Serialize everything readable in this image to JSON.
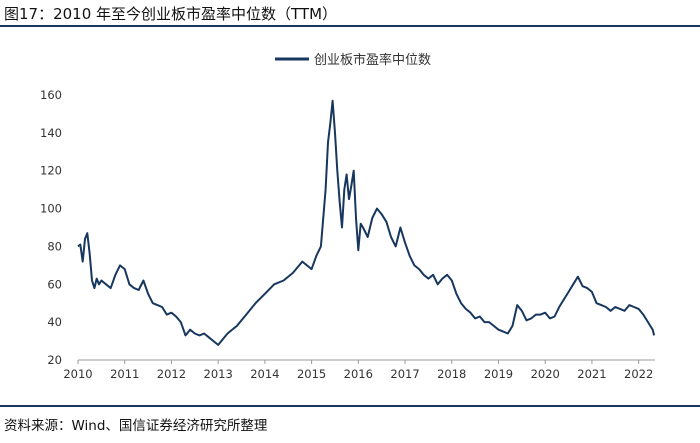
{
  "header": {
    "title": "图17：2010 年至今创业板市盈率中位数（TTM）"
  },
  "footer": {
    "source": "资料来源：Wind、国信证券经济研究所整理"
  },
  "colors": {
    "series": "#17375e",
    "rule": "#17375e"
  },
  "chart_data": {
    "type": "line",
    "title": "",
    "xlabel": "",
    "ylabel": "",
    "xlim": [
      2010.0,
      2022.35
    ],
    "ylim": [
      20,
      160
    ],
    "yticks": [
      20,
      40,
      60,
      80,
      100,
      120,
      140,
      160
    ],
    "xticks": [
      2010,
      2011,
      2012,
      2013,
      2014,
      2015,
      2016,
      2017,
      2018,
      2019,
      2020,
      2021,
      2022
    ],
    "legend": {
      "position": "top-center",
      "entries": [
        "创业板市盈率中位数"
      ]
    },
    "series": [
      {
        "name": "创业板市盈率中位数",
        "x": [
          2010.0,
          2010.05,
          2010.1,
          2010.15,
          2010.2,
          2010.25,
          2010.3,
          2010.35,
          2010.4,
          2010.45,
          2010.5,
          2010.6,
          2010.7,
          2010.8,
          2010.9,
          2011.0,
          2011.1,
          2011.2,
          2011.3,
          2011.4,
          2011.5,
          2011.6,
          2011.7,
          2011.8,
          2011.9,
          2012.0,
          2012.1,
          2012.2,
          2012.3,
          2012.4,
          2012.5,
          2012.6,
          2012.7,
          2012.8,
          2012.9,
          2013.0,
          2013.2,
          2013.4,
          2013.6,
          2013.8,
          2014.0,
          2014.2,
          2014.4,
          2014.6,
          2014.8,
          2015.0,
          2015.1,
          2015.2,
          2015.3,
          2015.35,
          2015.4,
          2015.45,
          2015.5,
          2015.55,
          2015.6,
          2015.65,
          2015.7,
          2015.75,
          2015.8,
          2015.85,
          2015.9,
          2015.95,
          2016.0,
          2016.05,
          2016.1,
          2016.2,
          2016.3,
          2016.4,
          2016.5,
          2016.6,
          2016.7,
          2016.8,
          2016.9,
          2017.0,
          2017.1,
          2017.2,
          2017.3,
          2017.4,
          2017.5,
          2017.6,
          2017.7,
          2017.8,
          2017.9,
          2018.0,
          2018.1,
          2018.2,
          2018.3,
          2018.4,
          2018.5,
          2018.6,
          2018.7,
          2018.8,
          2018.9,
          2019.0,
          2019.1,
          2019.2,
          2019.3,
          2019.4,
          2019.5,
          2019.6,
          2019.7,
          2019.8,
          2019.9,
          2020.0,
          2020.1,
          2020.2,
          2020.3,
          2020.4,
          2020.5,
          2020.6,
          2020.7,
          2020.8,
          2020.9,
          2021.0,
          2021.1,
          2021.2,
          2021.3,
          2021.4,
          2021.5,
          2021.6,
          2021.7,
          2021.8,
          2021.9,
          2022.0,
          2022.1,
          2022.2,
          2022.25,
          2022.3,
          2022.33
        ],
        "values": [
          80,
          81,
          72,
          84,
          87,
          76,
          62,
          58,
          63,
          60,
          62,
          60,
          58,
          65,
          70,
          68,
          60,
          58,
          57,
          62,
          55,
          50,
          49,
          48,
          44,
          45,
          43,
          40,
          33,
          36,
          34,
          33,
          34,
          32,
          30,
          28,
          34,
          38,
          44,
          50,
          55,
          60,
          62,
          66,
          72,
          68,
          75,
          80,
          110,
          135,
          145,
          157,
          140,
          120,
          104,
          90,
          110,
          118,
          105,
          112,
          120,
          95,
          78,
          92,
          90,
          85,
          95,
          100,
          97,
          93,
          85,
          80,
          90,
          82,
          75,
          70,
          68,
          65,
          63,
          65,
          60,
          63,
          65,
          62,
          55,
          50,
          47,
          45,
          42,
          43,
          40,
          40,
          38,
          36,
          35,
          34,
          38,
          49,
          46,
          41,
          42,
          44,
          44,
          45,
          42,
          43,
          48,
          52,
          56,
          60,
          64,
          59,
          58,
          56,
          50,
          49,
          48,
          46,
          48,
          47,
          46,
          49,
          48,
          47,
          44,
          40,
          38,
          36,
          33
        ]
      }
    ]
  }
}
